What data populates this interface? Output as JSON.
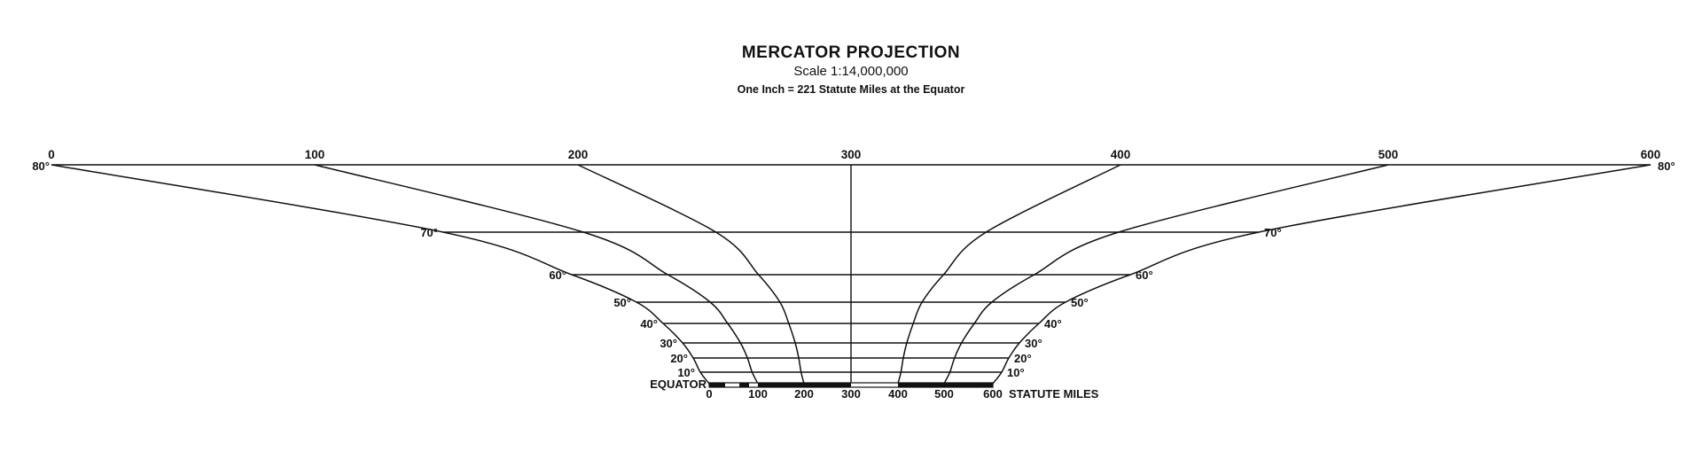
{
  "title": "MERCATOR PROJECTION",
  "scale": "Scale 1:14,000,000",
  "note": "One Inch = 221 Statute Miles at the Equator",
  "top_scale_labels": [
    "0",
    "100",
    "200",
    "300",
    "400",
    "500",
    "600"
  ],
  "bottom_scale_labels": [
    "0",
    "100",
    "200",
    "300",
    "400",
    "500",
    "600"
  ],
  "bottom_units_label": "STATUTE MILES",
  "equator_label": "EQUATOR",
  "latitudes": [
    {
      "deg": 80,
      "label": "80°"
    },
    {
      "deg": 70,
      "label": "70°"
    },
    {
      "deg": 60,
      "label": "60°"
    },
    {
      "deg": 50,
      "label": "50°"
    },
    {
      "deg": 40,
      "label": "40°"
    },
    {
      "deg": 30,
      "label": "30°"
    },
    {
      "deg": 20,
      "label": "20°"
    },
    {
      "deg": 10,
      "label": "10°"
    }
  ],
  "line_color": "#111111"
}
